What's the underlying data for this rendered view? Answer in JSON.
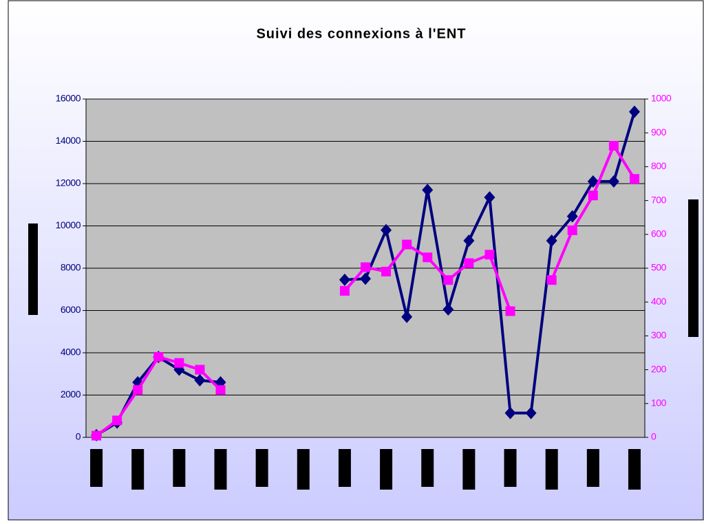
{
  "chart_data": {
    "type": "line",
    "title": "Suivi des connexions à l'ENT",
    "categories": [
      null,
      null,
      null,
      null,
      null,
      null,
      null,
      null,
      null,
      null,
      null,
      null,
      null,
      null,
      null,
      null,
      null,
      null,
      null,
      null,
      null,
      null,
      null,
      null,
      null,
      null,
      null
    ],
    "series": [
      {
        "color": "#000080",
        "marker": "diamond",
        "values": [
          100,
          700,
          2600,
          3800,
          3200,
          2700,
          2600,
          null,
          null,
          null,
          null,
          null,
          7450,
          7500,
          9800,
          5700,
          11700,
          6050,
          9300,
          11350,
          1150,
          1150,
          9300,
          10450,
          12100,
          12100,
          15400
        ]
      },
      {
        "color": "#ff00ff",
        "marker": "square",
        "axis": "y2",
        "values": [
          5,
          50,
          140,
          238,
          220,
          200,
          140,
          null,
          null,
          null,
          null,
          null,
          433,
          503,
          490,
          570,
          532,
          465,
          515,
          540,
          373,
          null,
          465,
          612,
          715,
          862,
          764
        ]
      }
    ],
    "ylim": [
      0,
      16000
    ],
    "yticks": [
      0,
      2000,
      4000,
      6000,
      8000,
      10000,
      12000,
      14000,
      16000
    ],
    "y2lim": [
      0,
      1000
    ],
    "y2ticks": [
      0,
      100,
      200,
      300,
      400,
      500,
      600,
      700,
      800,
      900,
      1000
    ],
    "grid": true
  }
}
